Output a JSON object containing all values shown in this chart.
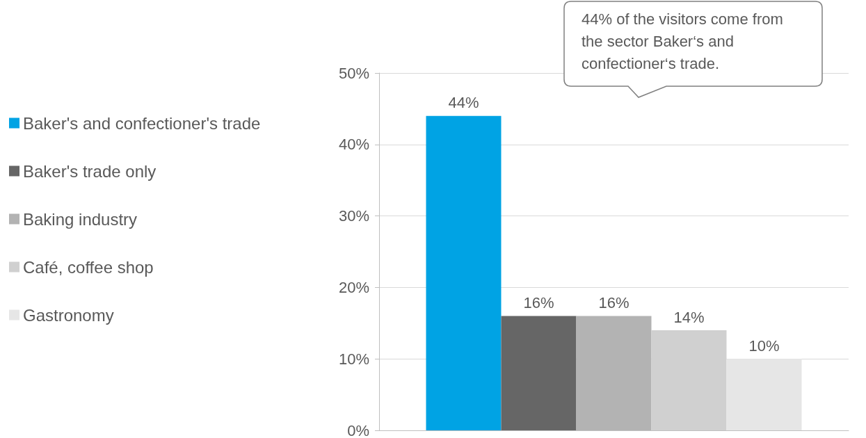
{
  "chart_data": {
    "type": "bar",
    "categories": [
      null
    ],
    "series": [
      {
        "name": "Baker's and confectioner's trade",
        "color": "#00a3e4",
        "values": [
          44
        ],
        "value_labels": [
          "44%"
        ]
      },
      {
        "name": "Baker's trade only",
        "color": "#666666",
        "values": [
          16
        ],
        "value_labels": [
          "16%"
        ]
      },
      {
        "name": "Baking industry",
        "color": "#b3b3b3",
        "values": [
          16
        ],
        "value_labels": [
          "16%"
        ]
      },
      {
        "name": "Café, coffee shop",
        "color": "#d0d0d0",
        "values": [
          14
        ],
        "value_labels": [
          "14%"
        ]
      },
      {
        "name": "Gastronomy",
        "color": "#e6e6e6",
        "values": [
          10
        ],
        "value_labels": [
          "10%"
        ]
      }
    ],
    "ylim": [
      0,
      50
    ],
    "yticks": [
      {
        "value": 0,
        "label": "0%"
      },
      {
        "value": 10,
        "label": "10%"
      },
      {
        "value": 20,
        "label": "20%"
      },
      {
        "value": 30,
        "label": "30%"
      },
      {
        "value": 40,
        "label": "40%"
      },
      {
        "value": 50,
        "label": "50%"
      }
    ],
    "grid": "y",
    "legend": "left",
    "annotations": [
      "44% of the visitors come from the sector Baker‘s and confectioner‘s trade."
    ]
  }
}
